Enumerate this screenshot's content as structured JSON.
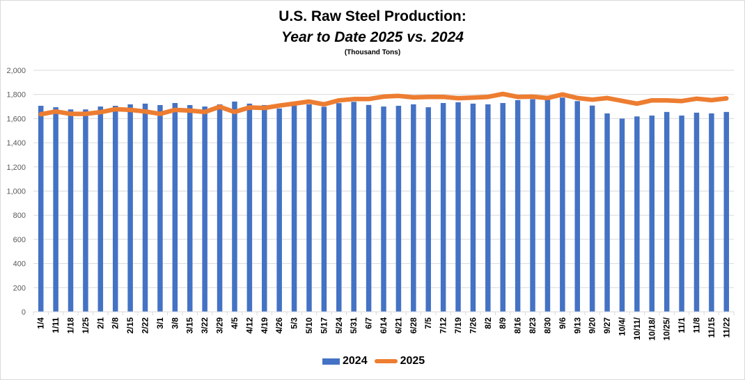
{
  "chart_data": {
    "type": "bar",
    "title": "U.S. Raw Steel Production:",
    "subtitle": "Year to Date 2025 vs. 2024",
    "units_label": "(Thousand Tons)",
    "xlabel": "",
    "ylabel": "",
    "ylim": [
      0,
      2000
    ],
    "yticks": [
      0,
      200,
      400,
      600,
      800,
      1000,
      1200,
      1400,
      1600,
      1800,
      2000
    ],
    "ytick_labels": [
      "0",
      "200",
      "400",
      "600",
      "800",
      "1,000",
      "1,200",
      "1,400",
      "1,600",
      "1,800",
      "2,000"
    ],
    "grid": true,
    "legend_position": "bottom",
    "categories": [
      "1/4",
      "1/11",
      "1/18",
      "1/25",
      "2/1",
      "2/8",
      "2/15",
      "2/22",
      "3/1",
      "3/8",
      "3/15",
      "3/22",
      "3/29",
      "4/5",
      "4/12",
      "4/19",
      "4/26",
      "5/3",
      "5/10",
      "5/17",
      "5/24",
      "5/31",
      "6/7",
      "6/14",
      "6/21",
      "6/28",
      "7/5",
      "7/12",
      "7/19",
      "7/26",
      "8/2",
      "8/9",
      "8/16",
      "8/23",
      "8/30",
      "9/6",
      "9/13",
      "9/20",
      "9/27",
      "10/4/",
      "10/11/",
      "10/18/",
      "10/25/",
      "11/1",
      "11/8",
      "11/15",
      "11/22"
    ],
    "series": [
      {
        "name": "2024",
        "type": "bar",
        "color": "#4472C4",
        "values": [
          1706,
          1694,
          1676,
          1676,
          1700,
          1706,
          1718,
          1724,
          1712,
          1729,
          1712,
          1700,
          1718,
          1741,
          1724,
          1712,
          1684,
          1708,
          1718,
          1698,
          1728,
          1739,
          1713,
          1700,
          1706,
          1718,
          1694,
          1729,
          1735,
          1724,
          1718,
          1729,
          1753,
          1761,
          1755,
          1774,
          1745,
          1708,
          1643,
          1600,
          1618,
          1625,
          1655,
          1625,
          1649,
          1643,
          1655
        ]
      },
      {
        "name": "2025",
        "type": "line",
        "color": "#ED7D31",
        "values": [
          1636,
          1659,
          1639,
          1639,
          1653,
          1678,
          1672,
          1659,
          1639,
          1672,
          1666,
          1655,
          1698,
          1655,
          1692,
          1688,
          1708,
          1724,
          1741,
          1718,
          1751,
          1762,
          1762,
          1782,
          1788,
          1776,
          1780,
          1780,
          1769,
          1774,
          1780,
          1804,
          1780,
          1782,
          1770,
          1800,
          1770,
          1757,
          1770,
          1747,
          1724,
          1751,
          1751,
          1745,
          1765,
          1753,
          1767
        ]
      }
    ]
  }
}
